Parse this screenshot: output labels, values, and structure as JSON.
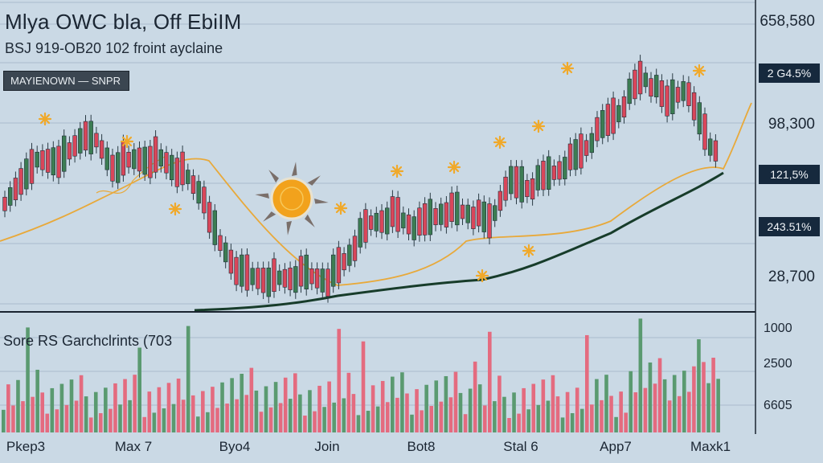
{
  "chart_data": [
    {
      "type": "candlestick",
      "title": "Mlya OWC bla, Off EbiIM",
      "subtitle": "BSJ 919-OB20 102 froint ayclaine",
      "legend_chip": "MAYIENOWN — SNPR",
      "y_tick_labels": [
        "658,580",
        "98,300",
        "28,700"
      ],
      "value_badges": [
        "2 G4.5%",
        "121,5%",
        "243.51%"
      ],
      "x_tick_labels": [
        "Pkep3",
        "Max 7",
        "Byo4",
        "Join",
        "Bot8",
        "Stal 6",
        "App7",
        "Maxk1"
      ],
      "grid": true,
      "overlays": [
        "orange moving average",
        "dark green moving average"
      ],
      "colors": {
        "up": "#3c7d53",
        "down": "#d9465a",
        "ma_orange": "#e8a93a",
        "ma_green": "#173c2a",
        "sun": "#f2a21c"
      }
    },
    {
      "type": "bar",
      "title": "Sore RS Garchclrints (703",
      "y_tick_labels": [
        "1000",
        "2500",
        "6605"
      ],
      "colors": {
        "up": "#5a9a70",
        "down": "#e46b7f"
      }
    }
  ]
}
